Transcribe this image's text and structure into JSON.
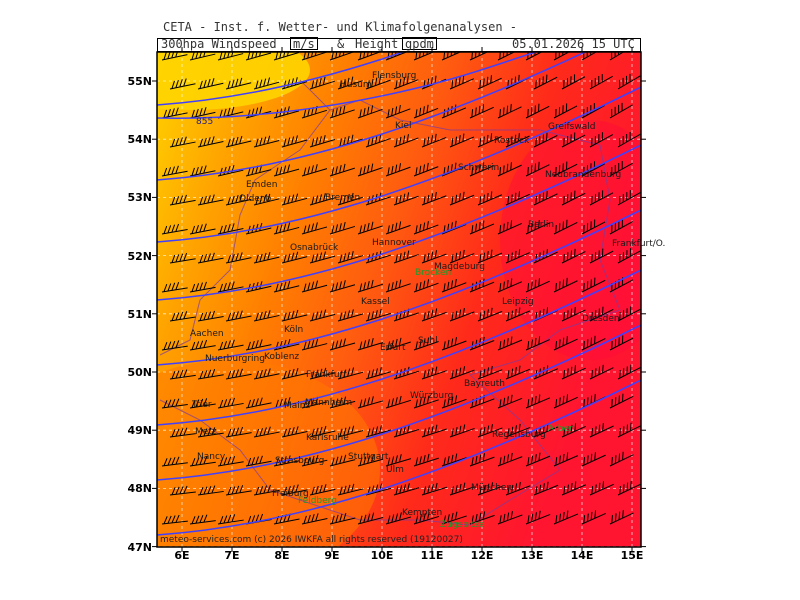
{
  "header": {
    "title": "CETA - Inst. f. Wetter- und Klimafolgenanalysen -",
    "subtitle_prefix": "300hpa Windspeed",
    "unit1": "m/s",
    "amp": "&",
    "subtitle_mid": "Height",
    "unit2": "gpdm",
    "datetime": "05.01.2026 15 UTC"
  },
  "axes": {
    "lat_labels": [
      "55N",
      "54N",
      "53N",
      "52N",
      "51N",
      "50N",
      "49N",
      "48N",
      "47N"
    ],
    "lon_labels": [
      "6E",
      "7E",
      "8E",
      "9E",
      "10E",
      "11E",
      "12E",
      "13E",
      "14E",
      "15E"
    ]
  },
  "contour_label": "855",
  "copyright": "meteo-services.com (c) 2026 IWKFA all rights reserved (19120027)",
  "colors": {
    "yellow": "#ffd400",
    "orange": "#ff7f00",
    "red": "#ff1a1a",
    "contour": "#4040ff",
    "grid": "#ffffff"
  },
  "cities": [
    {
      "name": "Flensburg"
    },
    {
      "name": "Husum"
    },
    {
      "name": "Kiel"
    },
    {
      "name": "Rostock"
    },
    {
      "name": "Greifswald"
    },
    {
      "name": "Schwerin"
    },
    {
      "name": "Neubrandenburg"
    },
    {
      "name": "Emden"
    },
    {
      "name": "Oldenb."
    },
    {
      "name": "Bremen"
    },
    {
      "name": "Hannover"
    },
    {
      "name": "Osnabrück"
    },
    {
      "name": "Berlin"
    },
    {
      "name": "Frankfurt/O."
    },
    {
      "name": "Kassel"
    },
    {
      "name": "Leipzig"
    },
    {
      "name": "Erfurt"
    },
    {
      "name": "Aachen"
    },
    {
      "name": "Köln"
    },
    {
      "name": "Koblenz"
    },
    {
      "name": "Nuerburgring"
    },
    {
      "name": "Frankfurt"
    },
    {
      "name": "Würzburg"
    },
    {
      "name": "Bayreuth"
    },
    {
      "name": "Trier"
    },
    {
      "name": "Mainz"
    },
    {
      "name": "Mannheim"
    },
    {
      "name": "Karlsruhe"
    },
    {
      "name": "Stuttgart"
    },
    {
      "name": "Ulm"
    },
    {
      "name": "Regensburg"
    },
    {
      "name": "Metz"
    },
    {
      "name": "Nancy"
    },
    {
      "name": "Strasbourg"
    },
    {
      "name": "Freiburg"
    },
    {
      "name": "München"
    },
    {
      "name": "Kempten"
    },
    {
      "name": "Suhl"
    },
    {
      "name": "Dresden"
    },
    {
      "name": "Magdeburg"
    }
  ],
  "stations": [
    {
      "name": "Brocken"
    },
    {
      "name": "Feldberg"
    },
    {
      "name": "Zugspitze"
    },
    {
      "name": "Arber"
    }
  ]
}
